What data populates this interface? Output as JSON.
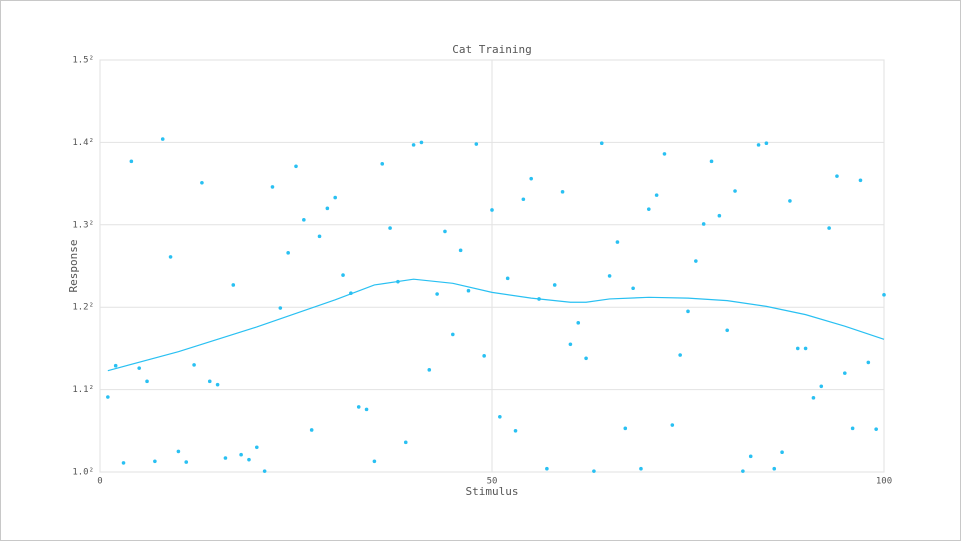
{
  "chart_data": {
    "type": "scatter",
    "title": "Cat Training",
    "x_label": "Stimulus",
    "y_label": "Response",
    "xlim": [
      0,
      100
    ],
    "xticks": [
      0,
      50,
      100
    ],
    "ylim": [
      1.0,
      1.5
    ],
    "yticks": [
      {
        "value": 1.0,
        "label": "1.0²"
      },
      {
        "value": 1.1,
        "label": "1.1²"
      },
      {
        "value": 1.2,
        "label": "1.2²"
      },
      {
        "value": 1.3,
        "label": "1.3²"
      },
      {
        "value": 1.4,
        "label": "1.4²"
      },
      {
        "value": 1.5,
        "label": "1.5²"
      }
    ],
    "grid": true,
    "series": [
      {
        "type": "scatter",
        "color": "#29c0f2",
        "x": [
          1,
          2,
          3,
          4,
          5,
          6,
          7,
          8,
          9,
          10,
          11,
          12,
          13,
          14,
          15,
          16,
          17,
          18,
          19,
          20,
          21,
          22,
          23,
          24,
          25,
          26,
          27,
          28,
          29,
          30,
          31,
          32,
          33,
          34,
          35,
          36,
          37,
          38,
          39,
          40,
          41,
          42,
          43,
          44,
          45,
          46,
          47,
          48,
          49,
          50,
          51,
          52,
          53,
          54,
          55,
          56,
          57,
          58,
          59,
          60,
          61,
          62,
          63,
          64,
          65,
          66,
          67,
          68,
          69,
          70,
          71,
          72,
          73,
          74,
          75,
          76,
          77,
          78,
          79,
          80,
          81,
          82,
          83,
          84,
          85,
          86,
          87,
          88,
          89,
          90,
          91,
          92,
          93,
          94,
          95,
          96,
          97,
          98,
          99,
          100
        ],
        "values": [
          1.091,
          1.129,
          1.011,
          1.377,
          1.126,
          1.11,
          1.013,
          1.404,
          1.261,
          1.025,
          1.012,
          1.13,
          1.351,
          1.11,
          1.106,
          1.017,
          1.227,
          1.021,
          1.015,
          1.03,
          1.001,
          1.346,
          1.199,
          1.266,
          1.371,
          1.306,
          1.051,
          1.286,
          1.32,
          1.333,
          1.239,
          1.217,
          1.079,
          1.076,
          1.013,
          1.374,
          1.296,
          1.231,
          1.036,
          1.397,
          1.4,
          1.124,
          1.216,
          1.292,
          1.167,
          1.269,
          1.22,
          1.398,
          1.141,
          1.318,
          1.067,
          1.235,
          1.05,
          1.331,
          1.356,
          1.21,
          1.004,
          1.227,
          1.34,
          1.155,
          1.181,
          1.138,
          1.001,
          1.399,
          1.238,
          1.279,
          1.053,
          1.223,
          1.004,
          1.319,
          1.336,
          1.386,
          1.057,
          1.142,
          1.195,
          1.256,
          1.301,
          1.377,
          1.311,
          1.172,
          1.341,
          1.001,
          1.019,
          1.397,
          1.399,
          1.004,
          1.024,
          1.329,
          1.15,
          1.15,
          1.09,
          1.104,
          1.296,
          1.359,
          1.12,
          1.053,
          1.354,
          1.133,
          1.052,
          1.215
        ]
      },
      {
        "type": "line",
        "color": "#29c0f2",
        "x": [
          1,
          10,
          20,
          30,
          35,
          40,
          45,
          50,
          55,
          60,
          62,
          65,
          70,
          75,
          80,
          85,
          90,
          95,
          100
        ],
        "values": [
          1.123,
          1.146,
          1.176,
          1.209,
          1.227,
          1.234,
          1.229,
          1.218,
          1.211,
          1.206,
          1.206,
          1.21,
          1.212,
          1.211,
          1.208,
          1.201,
          1.191,
          1.177,
          1.161
        ]
      }
    ]
  }
}
